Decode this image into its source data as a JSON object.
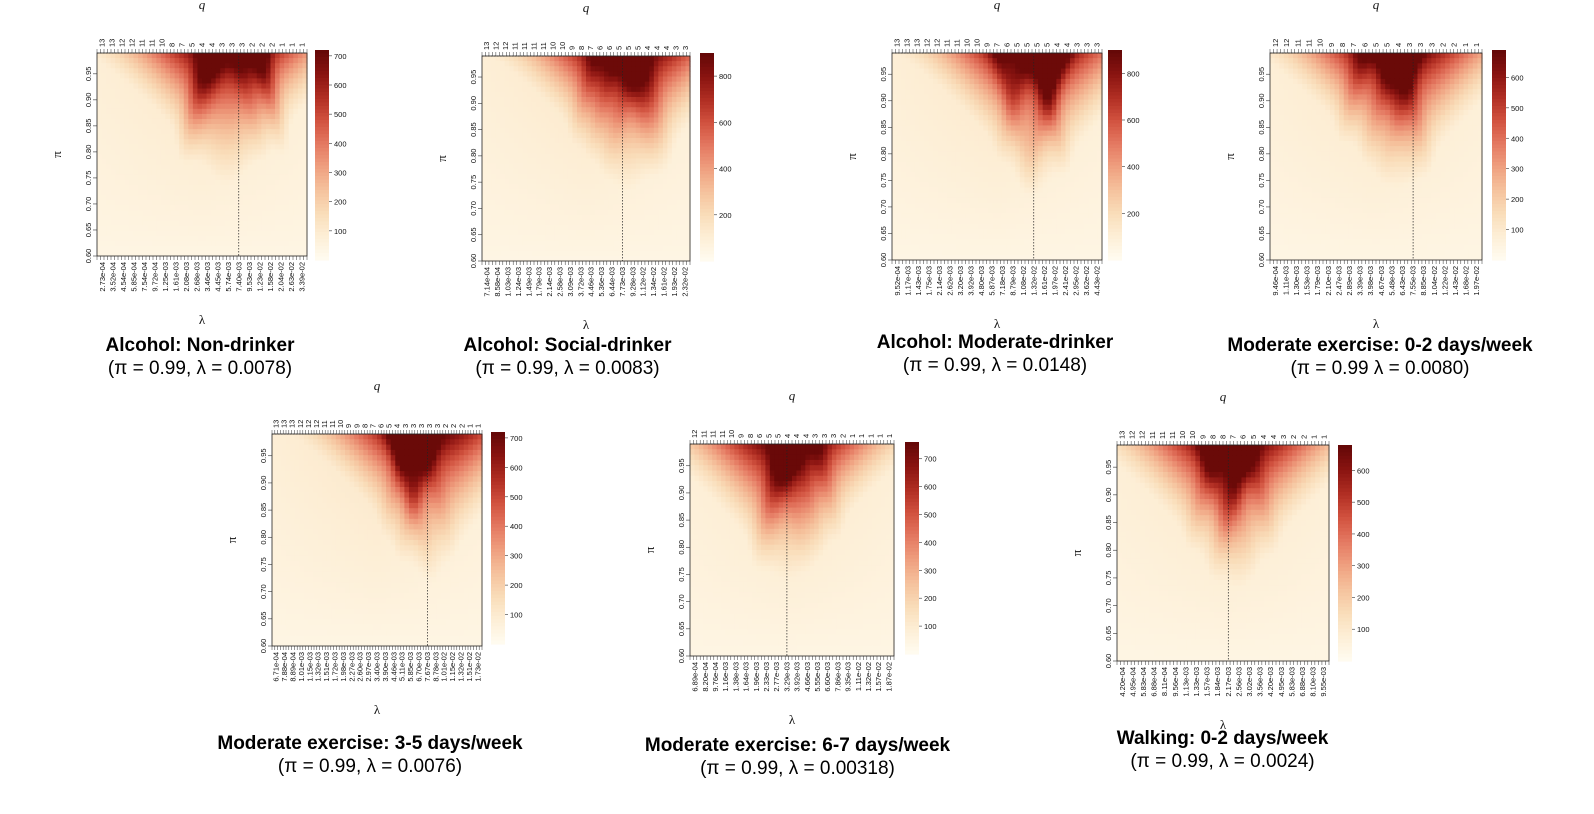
{
  "palette": [
    "#fffbef",
    "#fdeed5",
    "#f9dcb8",
    "#f5c19c",
    "#ef9f7f",
    "#e47861",
    "#d1523f",
    "#b12e23",
    "#8a1411",
    "#650807"
  ],
  "chart_data": [
    {
      "type": "heatmap",
      "title": "Alcohol: Non-drinker",
      "subtitle": "(π = 0.99, λ = 0.0078)",
      "xlabel": "λ",
      "ylabel": "π",
      "toplabel": "q",
      "x_ticks": [
        "2.73e-04",
        "3.52e-04",
        "4.54e-04",
        "5.85e-04",
        "7.54e-04",
        "9.72e-04",
        "1.25e-03",
        "1.61e-03",
        "2.08e-03",
        "2.68e-03",
        "3.46e-03",
        "4.45e-03",
        "5.74e-03",
        "7.40e-03",
        "9.53e-03",
        "1.23e-02",
        "1.58e-02",
        "2.04e-02",
        "2.63e-02",
        "3.39e-02"
      ],
      "q_ticks": [
        "13",
        "13",
        "12",
        "12",
        "11",
        "11",
        "10",
        "8",
        "7",
        "5",
        "4",
        "4",
        "3",
        "3",
        "3",
        "2",
        "2",
        "2",
        "1",
        "1",
        "1"
      ],
      "y_ticks": [
        "0.60",
        "0.65",
        "0.70",
        "0.75",
        "0.80",
        "0.85",
        "0.90",
        "0.95"
      ],
      "ylim": [
        0.6,
        0.99
      ],
      "colorbar_ticks": [
        100,
        200,
        300,
        400,
        500,
        600,
        700
      ],
      "zlim": [
        0,
        720
      ],
      "peak_x": 0.62,
      "peak_z": 710,
      "optimum": {
        "pi": 0.99,
        "lambda_index": 13.5
      }
    },
    {
      "type": "heatmap",
      "title": "Alcohol: Social-drinker",
      "subtitle": "(π = 0.99, λ = 0.0083)",
      "xlabel": "λ",
      "ylabel": "π",
      "toplabel": "q",
      "x_ticks": [
        "7.14e-04",
        "8.58e-04",
        "1.03e-03",
        "1.24e-03",
        "1.49e-03",
        "1.79e-03",
        "2.14e-03",
        "2.58e-03",
        "3.09e-03",
        "3.72e-03",
        "4.46e-03",
        "5.36e-03",
        "6.44e-03",
        "7.73e-03",
        "9.28e-03",
        "1.12e-02",
        "1.34e-02",
        "1.61e-02",
        "1.93e-02",
        "2.32e-02"
      ],
      "q_ticks": [
        "13",
        "12",
        "12",
        "11",
        "11",
        "11",
        "11",
        "10",
        "10",
        "9",
        "8",
        "7",
        "6",
        "6",
        "5",
        "5",
        "5",
        "4",
        "4",
        "4",
        "3",
        "3"
      ],
      "y_ticks": [
        "0.60",
        "0.65",
        "0.70",
        "0.75",
        "0.80",
        "0.85",
        "0.90",
        "0.95"
      ],
      "ylim": [
        0.6,
        0.99
      ],
      "colorbar_ticks": [
        200,
        400,
        600,
        800
      ],
      "zlim": [
        0,
        900
      ],
      "peak_x": 0.7,
      "peak_z": 880,
      "optimum": {
        "pi": 0.99,
        "lambda_index": 13.5
      }
    },
    {
      "type": "heatmap",
      "title": "Alcohol: Moderate-drinker",
      "subtitle": "(π = 0.99, λ = 0.0148)",
      "xlabel": "λ",
      "ylabel": "π",
      "toplabel": "q",
      "x_ticks": [
        "9.52e-04",
        "1.17e-03",
        "1.43e-03",
        "1.75e-03",
        "2.14e-03",
        "2.62e-03",
        "3.20e-03",
        "3.92e-03",
        "4.80e-03",
        "5.87e-03",
        "7.18e-03",
        "8.79e-03",
        "1.08e-02",
        "1.32e-02",
        "1.61e-02",
        "1.97e-02",
        "2.41e-02",
        "2.95e-02",
        "3.62e-02",
        "4.43e-02"
      ],
      "q_ticks": [
        "13",
        "13",
        "13",
        "12",
        "12",
        "11",
        "11",
        "10",
        "10",
        "9",
        "7",
        "6",
        "5",
        "5",
        "5",
        "5",
        "4",
        "4",
        "3",
        "3",
        "3"
      ],
      "y_ticks": [
        "0.60",
        "0.65",
        "0.70",
        "0.75",
        "0.80",
        "0.85",
        "0.90",
        "0.95"
      ],
      "ylim": [
        0.6,
        0.99
      ],
      "colorbar_ticks": [
        200,
        400,
        600,
        800
      ],
      "zlim": [
        0,
        900
      ],
      "peak_x": 0.68,
      "peak_z": 880,
      "optimum": {
        "pi": 0.99,
        "lambda_index": 13.5
      }
    },
    {
      "type": "heatmap",
      "title": "Moderate exercise: 0-2 days/week",
      "subtitle": "(π = 0.99 λ = 0.0080)",
      "xlabel": "λ",
      "ylabel": "π",
      "toplabel": "q",
      "x_ticks": [
        "9.46e-04",
        "1.11e-03",
        "1.30e-03",
        "1.53e-03",
        "1.79e-03",
        "2.10e-03",
        "2.47e-03",
        "2.89e-03",
        "3.39e-03",
        "3.98e-03",
        "4.67e-03",
        "5.48e-03",
        "6.43e-03",
        "7.55e-03",
        "8.85e-03",
        "1.04e-02",
        "1.22e-02",
        "1.43e-02",
        "1.68e-02",
        "1.97e-02"
      ],
      "q_ticks": [
        "12",
        "12",
        "11",
        "11",
        "10",
        "9",
        "8",
        "7",
        "6",
        "5",
        "5",
        "4",
        "3",
        "3",
        "3",
        "2",
        "2",
        "1",
        "1"
      ],
      "y_ticks": [
        "0.60",
        "0.65",
        "0.70",
        "0.75",
        "0.80",
        "0.85",
        "0.90",
        "0.95"
      ],
      "ylim": [
        0.6,
        0.99
      ],
      "colorbar_ticks": [
        100,
        200,
        300,
        400,
        500,
        600
      ],
      "zlim": [
        0,
        690
      ],
      "peak_x": 0.6,
      "peak_z": 680,
      "optimum": {
        "pi": 0.99,
        "lambda_index": 13.5
      }
    },
    {
      "type": "heatmap",
      "title": "Moderate exercise: 3-5 days/week",
      "subtitle": "(π = 0.99, λ = 0.0076)",
      "xlabel": "λ",
      "ylabel": "π",
      "toplabel": "q",
      "x_ticks": [
        "6.71e-04",
        "7.88e-04",
        "8.89e-04",
        "1.01e-03",
        "1.15e-03",
        "1.32e-03",
        "1.51e-03",
        "1.72e-03",
        "1.98e-03",
        "2.27e-03",
        "2.60e-03",
        "2.97e-03",
        "3.40e-03",
        "3.90e-03",
        "4.46e-03",
        "5.11e-03",
        "5.85e-03",
        "6.70e-03",
        "7.67e-03",
        "8.78e-03",
        "1.01e-02",
        "1.15e-02",
        "1.32e-02",
        "1.51e-02",
        "1.73e-02"
      ],
      "q_ticks": [
        "13",
        "13",
        "13",
        "12",
        "12",
        "12",
        "11",
        "11",
        "10",
        "9",
        "9",
        "8",
        "7",
        "6",
        "5",
        "4",
        "3",
        "3",
        "3",
        "3",
        "3",
        "2",
        "2",
        "2",
        "1",
        "1"
      ],
      "y_ticks": [
        "0.60",
        "0.65",
        "0.70",
        "0.75",
        "0.80",
        "0.85",
        "0.90",
        "0.95"
      ],
      "ylim": [
        0.6,
        0.99
      ],
      "colorbar_ticks": [
        100,
        200,
        300,
        400,
        500,
        600,
        700
      ],
      "zlim": [
        0,
        720
      ],
      "peak_x": 0.74,
      "peak_z": 710,
      "optimum": {
        "pi": 0.99,
        "lambda_index": 18.5
      }
    },
    {
      "type": "heatmap",
      "title": "Moderate exercise: 6-7 days/week",
      "subtitle": "(π = 0.99, λ = 0.00318)",
      "xlabel": "λ",
      "ylabel": "π",
      "toplabel": "q",
      "x_ticks": [
        "6.89e-04",
        "8.20e-04",
        "9.76e-04",
        "1.16e-03",
        "1.38e-03",
        "1.64e-03",
        "1.96e-03",
        "2.33e-03",
        "2.77e-03",
        "3.29e-03",
        "3.92e-03",
        "4.66e-03",
        "5.55e-03",
        "6.60e-03",
        "7.86e-03",
        "9.35e-03",
        "1.11e-02",
        "1.32e-02",
        "1.57e-02",
        "1.87e-02"
      ],
      "q_ticks": [
        "12",
        "11",
        "11",
        "11",
        "10",
        "9",
        "8",
        "6",
        "5",
        "5",
        "4",
        "4",
        "4",
        "3",
        "3",
        "3",
        "2",
        "1",
        "1",
        "1",
        "1",
        "1"
      ],
      "y_ticks": [
        "0.60",
        "0.65",
        "0.70",
        "0.75",
        "0.80",
        "0.85",
        "0.90",
        "0.95"
      ],
      "ylim": [
        0.6,
        0.99
      ],
      "colorbar_ticks": [
        100,
        200,
        300,
        400,
        500,
        600,
        700
      ],
      "zlim": [
        0,
        760
      ],
      "peak_x": 0.48,
      "peak_z": 750,
      "optimum": {
        "pi": 0.99,
        "lambda_index": 9.5
      }
    },
    {
      "type": "heatmap",
      "title": "Walking: 0-2 days/week",
      "subtitle": "(π = 0.99, λ = 0.0024)",
      "xlabel": "λ",
      "ylabel": "π",
      "toplabel": "q",
      "x_ticks": [
        "4.20e-04",
        "4.95e-04",
        "5.83e-04",
        "6.88e-04",
        "8.11e-04",
        "9.56e-04",
        "1.13e-03",
        "1.33e-03",
        "1.57e-03",
        "1.84e-03",
        "2.17e-03",
        "2.56e-03",
        "3.02e-03",
        "3.56e-03",
        "4.20e-03",
        "4.95e-03",
        "5.83e-03",
        "6.88e-03",
        "8.10e-03",
        "9.55e-03"
      ],
      "q_ticks": [
        "13",
        "12",
        "12",
        "11",
        "11",
        "11",
        "10",
        "10",
        "9",
        "8",
        "8",
        "7",
        "6",
        "5",
        "4",
        "4",
        "3",
        "2",
        "2",
        "1",
        "1"
      ],
      "y_ticks": [
        "0.60",
        "0.65",
        "0.70",
        "0.75",
        "0.80",
        "0.85",
        "0.90",
        "0.95"
      ],
      "ylim": [
        0.6,
        0.99
      ],
      "colorbar_ticks": [
        100,
        200,
        300,
        400,
        500,
        600
      ],
      "zlim": [
        0,
        680
      ],
      "peak_x": 0.55,
      "peak_z": 670,
      "optimum": {
        "pi": 0.99,
        "lambda_index": 10.5
      }
    }
  ]
}
